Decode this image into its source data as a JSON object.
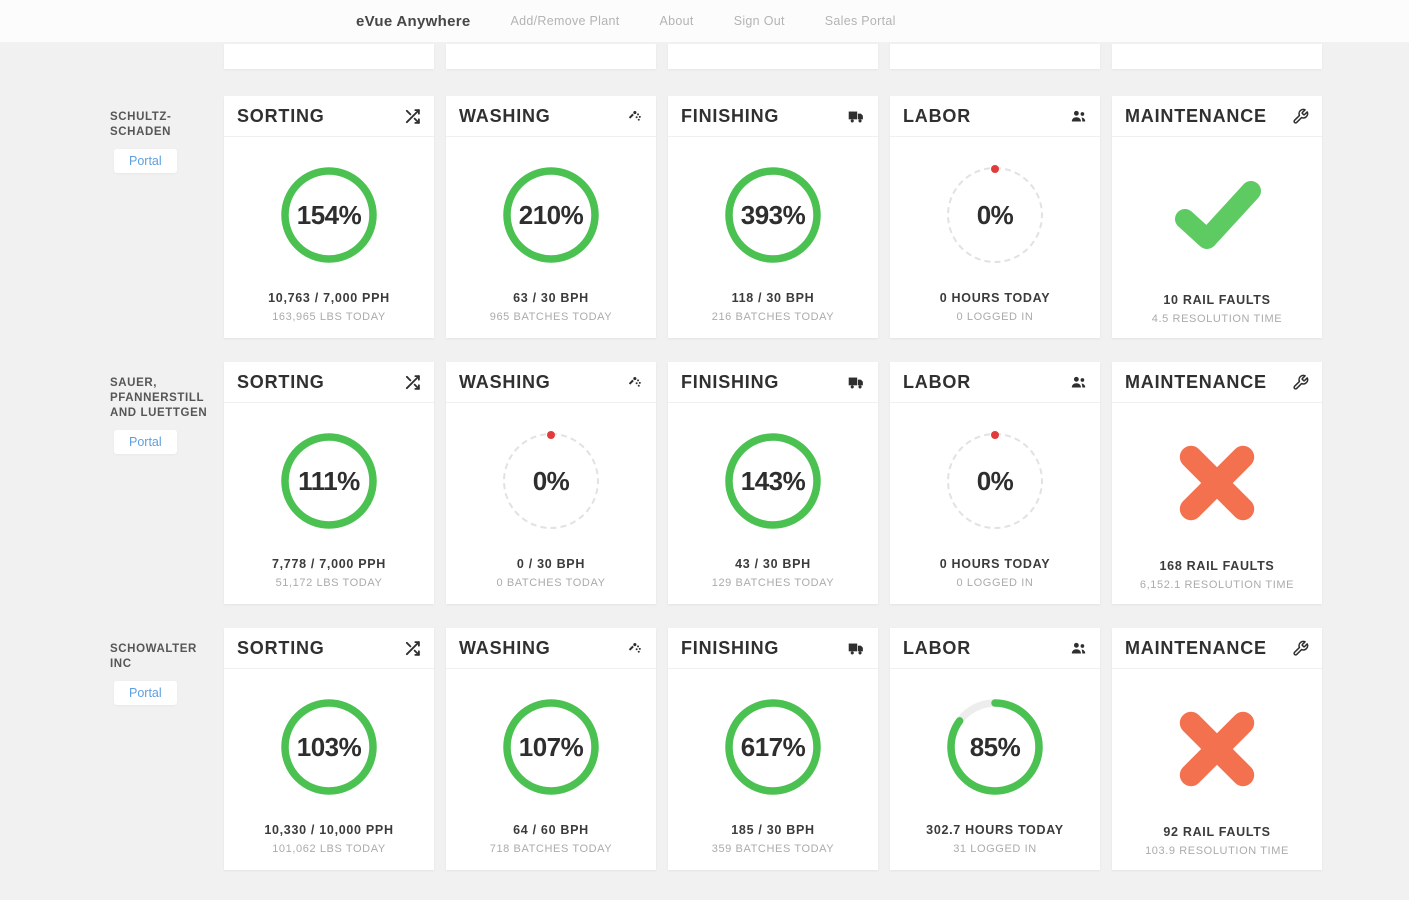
{
  "nav": {
    "brand": "eVue Anywhere",
    "links": [
      {
        "label": "Add/Remove Plant"
      },
      {
        "label": "About"
      },
      {
        "label": "Sign Out"
      },
      {
        "label": "Sales Portal"
      }
    ]
  },
  "colors": {
    "ring_green": "#4bc151",
    "check_green": "#5ecb62",
    "alert_orange": "#f4714f",
    "marker_red": "#e23b3b",
    "track_gray": "#ededed",
    "link_blue": "#5f9fdf"
  },
  "rows": [
    {
      "company": "SCHULTZ-SCHADEN",
      "portal": "Portal",
      "cards": [
        {
          "label": "SORTING",
          "icon": "shuffle-icon",
          "gauge": {
            "type": "ring",
            "fill": 100
          },
          "percent": "154%",
          "stat1": "10,763 / 7,000 PPH",
          "stat2": "163,965 LBS TODAY"
        },
        {
          "label": "WASHING",
          "icon": "shower-icon",
          "gauge": {
            "type": "ring",
            "fill": 100
          },
          "percent": "210%",
          "stat1": "63 / 30 BPH",
          "stat2": "965 BATCHES TODAY"
        },
        {
          "label": "FINISHING",
          "icon": "truck-icon",
          "gauge": {
            "type": "ring",
            "fill": 100
          },
          "percent": "393%",
          "stat1": "118 / 30 BPH",
          "stat2": "216 BATCHES TODAY"
        },
        {
          "label": "LABOR",
          "icon": "users-icon",
          "gauge": {
            "type": "zero"
          },
          "percent": "0%",
          "stat1": "0 HOURS TODAY",
          "stat2": "0 LOGGED IN"
        },
        {
          "label": "MAINTENANCE",
          "icon": "wrench-icon",
          "gauge": {
            "type": "check"
          },
          "percent": "",
          "stat1": "10 RAIL FAULTS",
          "stat2": "4.5 RESOLUTION TIME"
        }
      ]
    },
    {
      "company": "SAUER, PFANNERSTILL AND LUETTGEN",
      "portal": "Portal",
      "cards": [
        {
          "label": "SORTING",
          "icon": "shuffle-icon",
          "gauge": {
            "type": "ring",
            "fill": 100
          },
          "percent": "111%",
          "stat1": "7,778 / 7,000 PPH",
          "stat2": "51,172 LBS TODAY"
        },
        {
          "label": "WASHING",
          "icon": "shower-icon",
          "gauge": {
            "type": "zero"
          },
          "percent": "0%",
          "stat1": "0 / 30 BPH",
          "stat2": "0 BATCHES TODAY"
        },
        {
          "label": "FINISHING",
          "icon": "truck-icon",
          "gauge": {
            "type": "ring",
            "fill": 100
          },
          "percent": "143%",
          "stat1": "43 / 30 BPH",
          "stat2": "129 BATCHES TODAY"
        },
        {
          "label": "LABOR",
          "icon": "users-icon",
          "gauge": {
            "type": "zero"
          },
          "percent": "0%",
          "stat1": "0 HOURS TODAY",
          "stat2": "0 LOGGED IN"
        },
        {
          "label": "MAINTENANCE",
          "icon": "wrench-icon",
          "gauge": {
            "type": "cross"
          },
          "percent": "",
          "stat1": "168 RAIL FAULTS",
          "stat2": "6,152.1 RESOLUTION TIME"
        }
      ]
    },
    {
      "company": "SCHOWALTER INC",
      "portal": "Portal",
      "cards": [
        {
          "label": "SORTING",
          "icon": "shuffle-icon",
          "gauge": {
            "type": "ring",
            "fill": 100
          },
          "percent": "103%",
          "stat1": "10,330 / 10,000 PPH",
          "stat2": "101,062 LBS TODAY"
        },
        {
          "label": "WASHING",
          "icon": "shower-icon",
          "gauge": {
            "type": "ring",
            "fill": 100
          },
          "percent": "107%",
          "stat1": "64 / 60 BPH",
          "stat2": "718 BATCHES TODAY"
        },
        {
          "label": "FINISHING",
          "icon": "truck-icon",
          "gauge": {
            "type": "ring",
            "fill": 100
          },
          "percent": "617%",
          "stat1": "185 / 30 BPH",
          "stat2": "359 BATCHES TODAY"
        },
        {
          "label": "LABOR",
          "icon": "users-icon",
          "gauge": {
            "type": "ring",
            "fill": 85
          },
          "percent": "85%",
          "stat1": "302.7 HOURS TODAY",
          "stat2": "31 LOGGED IN"
        },
        {
          "label": "MAINTENANCE",
          "icon": "wrench-icon",
          "gauge": {
            "type": "cross"
          },
          "percent": "",
          "stat1": "92 RAIL FAULTS",
          "stat2": "103.9 RESOLUTION TIME"
        }
      ]
    }
  ]
}
